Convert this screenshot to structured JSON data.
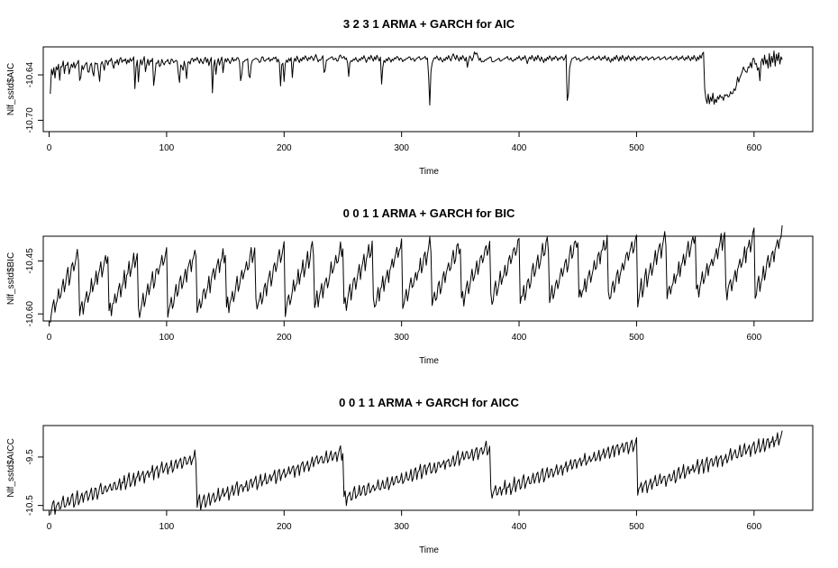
{
  "chart_data": [
    {
      "type": "line",
      "title": "3 2 3 1 ARMA + GARCH for AIC",
      "xlabel": "Time",
      "ylabel": "Nlf_sstd$AIC",
      "xlim": [
        -5,
        650
      ],
      "ylim": [
        -10.715,
        -10.603
      ],
      "xticks": [
        0,
        100,
        200,
        300,
        400,
        500,
        600
      ],
      "yticks": [
        -10.7,
        -10.64
      ],
      "ytick_labels": [
        "-10.70",
        "-10.64"
      ],
      "n_points": 624,
      "series": [
        {
          "values": [
            -10.665,
            -10.632,
            -10.64,
            -10.63,
            -10.645,
            -10.628,
            -10.634,
            -10.625,
            -10.65,
            -10.626,
            -10.63,
            -10.62,
            -10.642,
            -10.624,
            -10.628,
            -10.622,
            -10.644,
            -10.628,
            -10.625,
            -10.632,
            -10.62,
            -10.636,
            -10.622,
            -10.626,
            -10.618,
            -10.664,
            -10.63,
            -10.626,
            -10.638,
            -10.622,
            -10.628,
            -10.62,
            -10.65,
            -10.624,
            -10.63,
            -10.619,
            -10.655,
            -10.626,
            -10.622,
            -10.63,
            -10.618,
            -10.662,
            -10.628,
            -10.624,
            -10.62,
            -10.64,
            -10.622,
            -10.618,
            -10.63,
            -10.62,
            -10.624,
            -10.616,
            -10.624,
            -10.634,
            -10.622,
            -10.626,
            -10.618,
            -10.628,
            -10.62,
            -10.616,
            -10.624,
            -10.62,
            -10.622,
            -10.618,
            -10.626,
            -10.62,
            -10.624,
            -10.618,
            -10.622,
            -10.62,
            -10.616,
            -10.66,
            -10.628,
            -10.62,
            -10.652,
            -10.625,
            -10.619,
            -10.628,
            -10.62,
            -10.615,
            -10.64,
            -10.624,
            -10.618,
            -10.63,
            -10.618,
            -10.624,
            -10.616,
            -10.668,
            -10.63,
            -10.622,
            -10.626,
            -10.618,
            -10.635,
            -10.622,
            -10.618,
            -10.628,
            -10.626,
            -10.62,
            -10.624,
            -10.616,
            -10.632,
            -10.62,
            -10.618,
            -10.622,
            -10.626,
            -10.618,
            -10.624,
            -10.62,
            -10.664,
            -10.63,
            -10.622,
            -10.64,
            -10.624,
            -10.618,
            -10.654,
            -10.626,
            -10.62,
            -10.628,
            -10.62,
            -10.616,
            -10.624,
            -10.618,
            -10.622,
            -10.616,
            -10.62,
            -10.626,
            -10.618,
            -10.622,
            -10.626,
            -10.62,
            -10.616,
            -10.624,
            -10.618,
            -10.628,
            -10.622,
            -10.616,
            -10.664,
            -10.628,
            -10.62,
            -10.64,
            -10.624,
            -10.618,
            -10.628,
            -10.62,
            -10.616,
            -10.64,
            -10.622,
            -10.618,
            -10.624,
            -10.617,
            -10.622,
            -10.626,
            -10.62,
            -10.616,
            -10.624,
            -10.618,
            -10.622,
            -10.615,
            -10.619,
            -10.624,
            -10.66,
            -10.628,
            -10.62,
            -10.624,
            -10.618,
            -10.622,
            -10.616,
            -10.66,
            -10.63,
            -10.624,
            -10.618,
            -10.622,
            -10.616,
            -10.62,
            -10.618,
            -10.622,
            -10.626,
            -10.618,
            -10.614,
            -10.62,
            -10.624,
            -10.618,
            -10.622,
            -10.614,
            -10.624,
            -10.618,
            -10.622,
            -10.616,
            -10.62,
            -10.614,
            -10.624,
            -10.62,
            -10.616,
            -10.66,
            -10.628,
            -10.62,
            -10.652,
            -10.626,
            -10.62,
            -10.624,
            -10.618,
            -10.622,
            -10.616,
            -10.644,
            -10.624,
            -10.618,
            -10.622,
            -10.615,
            -10.62,
            -10.624,
            -10.618,
            -10.622,
            -10.616,
            -10.62,
            -10.614,
            -10.618,
            -10.622,
            -10.616,
            -10.62,
            -10.614,
            -10.618,
            -10.622,
            -10.616,
            -10.612,
            -10.62,
            -10.624,
            -10.618,
            -10.622,
            -10.616,
            -10.614,
            -10.65,
            -10.624,
            -10.618,
            -10.622,
            -10.616,
            -10.62,
            -10.614,
            -10.618,
            -10.622,
            -10.616,
            -10.62,
            -10.624,
            -10.618,
            -10.612,
            -10.616,
            -10.62,
            -10.614,
            -10.618,
            -10.622,
            -10.61,
            -10.65,
            -10.626,
            -10.62,
            -10.624,
            -10.618,
            -10.622,
            -10.616,
            -10.62,
            -10.624,
            -10.618,
            -10.622,
            -10.616,
            -10.62,
            -10.614,
            -10.618,
            -10.624,
            -10.62,
            -10.616,
            -10.62,
            -10.614,
            -10.618,
            -10.622,
            -10.616,
            -10.62,
            -10.614,
            -10.618,
            -10.622,
            -10.616,
            -10.655,
            -10.628,
            -10.62,
            -10.624,
            -10.618,
            -10.622,
            -10.616,
            -10.62,
            -10.624,
            -10.618,
            -10.622,
            -10.616,
            -10.62,
            -10.614,
            -10.618,
            -10.622,
            -10.616,
            -10.62,
            -10.624,
            -10.618,
            -10.622,
            -10.616,
            -10.62,
            -10.614,
            -10.618,
            -10.622,
            -10.616,
            -10.62,
            -10.624,
            -10.616,
            -10.62,
            -10.614,
            -10.618,
            -10.622,
            -10.616,
            -10.62,
            -10.614,
            -10.618,
            -10.622,
            -10.61,
            -10.7,
            -10.64,
            -10.626,
            -10.622,
            -10.616,
            -10.62,
            -10.614,
            -10.618,
            -10.622,
            -10.616,
            -10.62,
            -10.624,
            -10.618,
            -10.622,
            -10.616,
            -10.62,
            -10.614,
            -10.618,
            -10.622,
            -10.616,
            -10.612,
            -10.616,
            -10.62,
            -10.614,
            -10.618,
            -10.622,
            -10.616,
            -10.62,
            -10.614,
            -10.618,
            -10.622,
            -10.616,
            -10.632,
            -10.62,
            -10.614,
            -10.618,
            -10.622,
            -10.616,
            -10.608,
            -10.614,
            -10.61,
            -10.618,
            -10.622,
            -10.616,
            -10.626,
            -10.62,
            -10.624,
            -10.618,
            -10.622,
            -10.616,
            -10.62,
            -10.614,
            -10.618,
            -10.626,
            -10.62,
            -10.624,
            -10.618,
            -10.622,
            -10.616,
            -10.62,
            -10.624,
            -10.618,
            -10.622,
            -10.616,
            -10.62,
            -10.614,
            -10.618,
            -10.622,
            -10.616,
            -10.62,
            -10.624,
            -10.618,
            -10.622,
            -10.616,
            -10.62,
            -10.614,
            -10.618,
            -10.622,
            -10.616,
            -10.62,
            -10.614,
            -10.618,
            -10.626,
            -10.62,
            -10.616,
            -10.62,
            -10.614,
            -10.618,
            -10.622,
            -10.616,
            -10.62,
            -10.614,
            -10.618,
            -10.622,
            -10.616,
            -10.62,
            -10.624,
            -10.618,
            -10.622,
            -10.616,
            -10.62,
            -10.614,
            -10.618,
            -10.622,
            -10.616,
            -10.62,
            -10.614,
            -10.618,
            -10.622,
            -10.616,
            -10.62,
            -10.614,
            -10.618,
            -10.622,
            -10.616,
            -10.612,
            -10.708,
            -10.64,
            -10.626,
            -10.622,
            -10.616,
            -10.62,
            -10.614,
            -10.618,
            -10.622,
            -10.616,
            -10.62,
            -10.624,
            -10.618,
            -10.622,
            -10.616,
            -10.62,
            -10.614,
            -10.618,
            -10.622,
            -10.616,
            -10.62,
            -10.614,
            -10.618,
            -10.622,
            -10.616,
            -10.62,
            -10.614,
            -10.618,
            -10.622,
            -10.616,
            -10.62,
            -10.614,
            -10.618,
            -10.622,
            -10.616,
            -10.62,
            -10.624,
            -10.618,
            -10.622,
            -10.616,
            -10.62,
            -10.614,
            -10.618,
            -10.622,
            -10.616,
            -10.62,
            -10.614,
            -10.618,
            -10.622,
            -10.616,
            -10.62,
            -10.614,
            -10.618,
            -10.622,
            -10.616,
            -10.62,
            -10.614,
            -10.618,
            -10.622,
            -10.616,
            -10.62,
            -10.614,
            -10.618,
            -10.622,
            -10.616,
            -10.62,
            -10.614,
            -10.618,
            -10.622,
            -10.616,
            -10.62,
            -10.614,
            -10.618,
            -10.622,
            -10.616,
            -10.62,
            -10.614,
            -10.618,
            -10.622,
            -10.616,
            -10.62,
            -10.614,
            -10.618,
            -10.622,
            -10.616,
            -10.62,
            -10.614,
            -10.618,
            -10.622,
            -10.616,
            -10.62,
            -10.614,
            -10.618,
            -10.622,
            -10.616,
            -10.62,
            -10.614,
            -10.618,
            -10.622,
            -10.616,
            -10.62,
            -10.614,
            -10.618,
            -10.622,
            -10.616,
            -10.62,
            -10.614,
            -10.618,
            -10.622,
            -10.616,
            -10.62,
            -10.614,
            -10.618,
            -10.612,
            -10.61,
            -10.66,
            -10.672,
            -10.678,
            -10.664,
            -10.68,
            -10.668,
            -10.676,
            -10.662,
            -10.682,
            -10.67,
            -10.678,
            -10.666,
            -10.674,
            -10.664,
            -10.672,
            -10.668,
            -10.676,
            -10.662,
            -10.67,
            -10.664,
            -10.672,
            -10.666,
            -10.66,
            -10.668,
            -10.662,
            -10.656,
            -10.664,
            -10.646,
            -10.64,
            -10.658,
            -10.63,
            -10.65,
            -10.62,
            -10.64,
            -10.626,
            -10.648,
            -10.622,
            -10.64,
            -10.616,
            -10.636,
            -10.622,
            -10.612,
            -10.63,
            -10.618,
            -10.64,
            -10.62,
            -10.656,
            -10.626,
            -10.614,
            -10.632,
            -10.61,
            -10.628,
            -10.616,
            -10.636,
            -10.608,
            -10.632,
            -10.614,
            -10.626,
            -10.606,
            -10.63,
            -10.612,
            -10.622,
            -10.61,
            -10.626,
            -10.616,
            -10.62
          ]
        }
      ]
    },
    {
      "type": "line",
      "title": "0 0 1 1 ARMA + GARCH for BIC",
      "xlabel": "Time",
      "ylabel": "Nlf_sstd$BIC",
      "xlim": [
        -5,
        650
      ],
      "ylim": [
        -10.62,
        -10.38
      ],
      "xticks": [
        0,
        100,
        200,
        300,
        400,
        500,
        600
      ],
      "yticks": [
        -10.6,
        -10.45
      ],
      "ytick_labels": [
        "-10.60",
        "-10.45"
      ],
      "n_points": 624,
      "sawtooth": {
        "resets": [
          0,
          25,
          50,
          75,
          100,
          125,
          150,
          175,
          200,
          225,
          250,
          275,
          300,
          325,
          350,
          375,
          400,
          425,
          450,
          475,
          500,
          525,
          550,
          575,
          600
        ],
        "low": -10.6,
        "high": -10.43,
        "trend": 0.0001
      }
    },
    {
      "type": "line",
      "title": "0 0 1 1 ARMA + GARCH for AICC",
      "xlabel": "Time",
      "ylabel": "Nlf_sstd$AICC",
      "xlim": [
        -5,
        650
      ],
      "ylim": [
        -10.6,
        -8.85
      ],
      "xticks": [
        0,
        100,
        200,
        300,
        400,
        500,
        600
      ],
      "yticks": [
        -10.5,
        -9.5
      ],
      "ytick_labels": [
        "-10.5",
        "-9.5"
      ],
      "n_points": 624,
      "sawtooth": {
        "resets": [
          0,
          125,
          250,
          375,
          500
        ],
        "low": -10.55,
        "high": -9.6,
        "trend": 0.0008
      }
    }
  ]
}
